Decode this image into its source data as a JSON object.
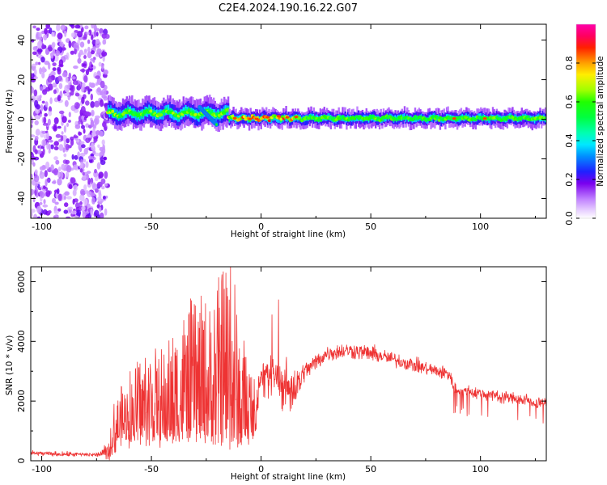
{
  "figure_title": "C2E4.2024.190.16.22.G07",
  "chart_data": [
    {
      "type": "heatmap",
      "title": "",
      "xlabel": "Height of straight line (km)",
      "ylabel": "Frequency (Hz)",
      "xlim": [
        -105,
        130
      ],
      "ylim": [
        -50,
        48
      ],
      "xticks": [
        -100,
        -50,
        0,
        50,
        100
      ],
      "yticks": [
        -40,
        -20,
        0,
        20,
        40
      ],
      "grid": false,
      "colorbar": {
        "label": "Normalized spectral amplitude",
        "range": [
          0,
          1
        ],
        "ticks": [
          "0.0",
          "0.2",
          "0.4",
          "0.6",
          "0.8"
        ],
        "colormap": "gist_ncar-like (white → purple → blue → cyan → green → yellow → red → magenta)"
      },
      "regions": [
        {
          "x": [
            -105,
            -70
          ],
          "freq_center": 0,
          "freq_spread": [
            -50,
            48
          ],
          "amplitude": 0.1,
          "description": "scattered noise"
        },
        {
          "x": [
            -70,
            -15
          ],
          "freq_center": 3,
          "band_halfwidth": 5,
          "amplitude": 0.55
        },
        {
          "x": [
            -28,
            -20
          ],
          "freq_center": 4,
          "amplitude": 0.7,
          "drift": "diagonal down to -3 Hz"
        },
        {
          "x": [
            -15,
            15
          ],
          "freq_center": 0.5,
          "band_halfwidth": 3,
          "amplitude": 0.85
        },
        {
          "x": [
            15,
            130
          ],
          "freq_center": 0.5,
          "band_halfwidth": 3,
          "amplitude": 0.6
        }
      ]
    },
    {
      "type": "line",
      "title": "",
      "xlabel": "Height of straight line (km)",
      "ylabel": "SNR (10 * v/v)",
      "xlim": [
        -105,
        130
      ],
      "ylim": [
        0,
        6500
      ],
      "xticks": [
        -100,
        -50,
        0,
        50,
        100
      ],
      "yticks": [
        0,
        2000,
        4000,
        6000
      ],
      "grid": false,
      "series": [
        {
          "color": "#ee3333",
          "envelope_x": [
            -105,
            -90,
            -75,
            -70,
            -67,
            -62,
            -55,
            -50,
            -45,
            -40,
            -35,
            -30,
            -25,
            -20,
            -18,
            -15,
            -13,
            -10,
            -6,
            -3,
            0,
            5,
            10,
            15,
            20,
            30,
            40,
            50,
            60,
            70,
            80,
            86,
            88,
            95,
            105,
            115,
            130
          ],
          "envelope_base": [
            250,
            220,
            200,
            300,
            600,
            900,
            900,
            900,
            900,
            900,
            1000,
            1000,
            1000,
            900,
            900,
            800,
            800,
            800,
            900,
            900,
            2900,
            3000,
            2500,
            2400,
            3000,
            3600,
            3700,
            3600,
            3400,
            3200,
            3000,
            2900,
            2400,
            2300,
            2200,
            2100,
            1900
          ],
          "envelope_amp": [
            120,
            120,
            100,
            400,
            1200,
            1800,
            2200,
            2600,
            2400,
            2800,
            3300,
            3600,
            3600,
            4200,
            4500,
            5200,
            4500,
            3000,
            2400,
            1500,
            500,
            800,
            1300,
            1200,
            500,
            400,
            400,
            400,
            350,
            350,
            350,
            350,
            350,
            300,
            300,
            300,
            300
          ],
          "peaks": [
            {
              "x": -30,
              "y": 5200
            },
            {
              "x": -18,
              "y": 6000
            },
            {
              "x": -14,
              "y": 6500
            },
            {
              "x": -12,
              "y": 5900
            },
            {
              "x": 8,
              "y": 5400
            },
            {
              "x": 5,
              "y": 4900
            }
          ]
        }
      ]
    }
  ]
}
